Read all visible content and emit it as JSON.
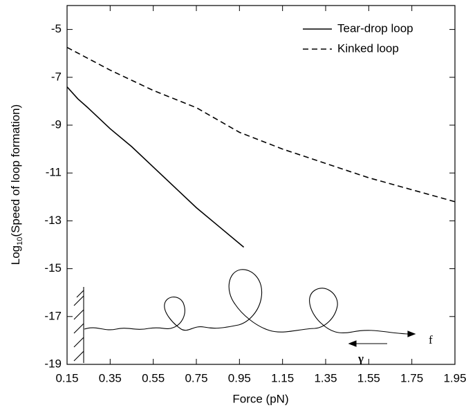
{
  "chart_data": {
    "type": "line",
    "xlabel": "Force (pN)",
    "ylabel": {
      "base": "Log",
      "subscript": "10",
      "rest": "(Speed of loop formation)"
    },
    "xlim": [
      0.15,
      1.95
    ],
    "ylim": [
      -19,
      -4
    ],
    "xticks": [
      0.15,
      0.35,
      0.55,
      0.75,
      0.95,
      1.15,
      1.35,
      1.55,
      1.75,
      1.95
    ],
    "yticks": [
      -5,
      -7,
      -9,
      -11,
      -13,
      -15,
      -17,
      -19
    ],
    "legend": "top-right",
    "grid": false,
    "annotations": [
      "f",
      "γ"
    ],
    "series": [
      {
        "name": "Tear-drop loop",
        "color": "#000000",
        "dash": "solid",
        "x": [
          0.15,
          0.2,
          0.25,
          0.35,
          0.45,
          0.55,
          0.65,
          0.75,
          0.85,
          0.97
        ],
        "values": [
          -7.4,
          -7.9,
          -8.3,
          -9.15,
          -9.9,
          -10.75,
          -11.6,
          -12.45,
          -13.2,
          -14.1
        ]
      },
      {
        "name": "Kinked loop",
        "color": "#000000",
        "dash": "dashed",
        "x": [
          0.15,
          0.35,
          0.55,
          0.75,
          0.95,
          1.15,
          1.35,
          1.55,
          1.75,
          1.95
        ],
        "values": [
          -5.75,
          -6.7,
          -7.55,
          -8.27,
          -9.3,
          -10.0,
          -10.6,
          -11.2,
          -11.7,
          -12.2
        ]
      }
    ]
  }
}
